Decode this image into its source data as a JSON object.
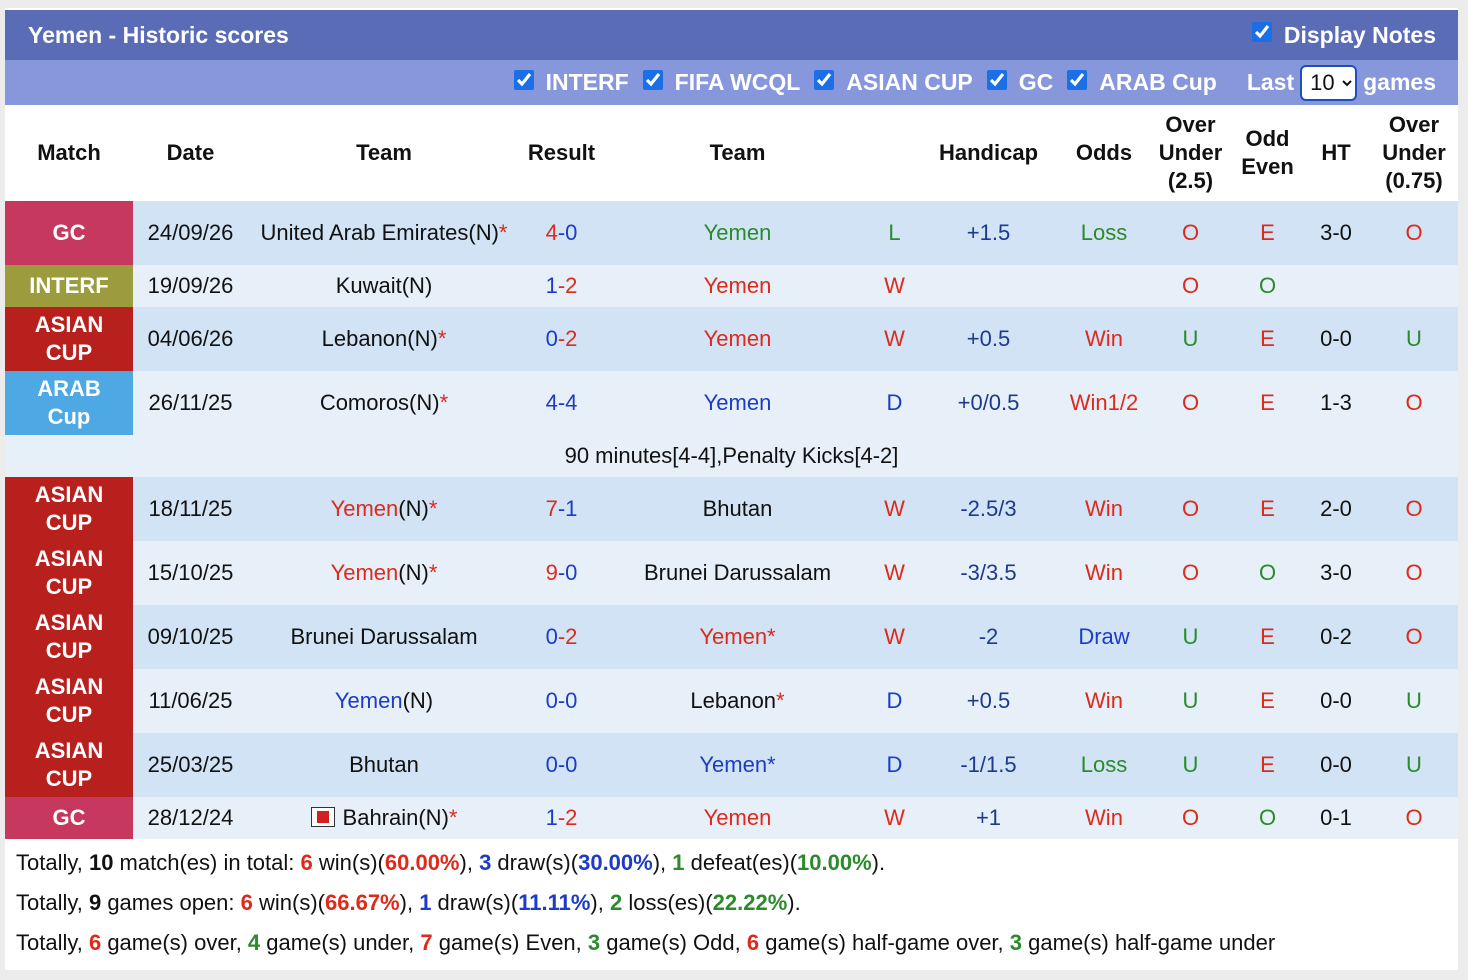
{
  "header": {
    "title": "Yemen - Historic scores",
    "display_notes": "Display Notes"
  },
  "filters": {
    "competitions": [
      "INTERF",
      "FIFA WCQL",
      "ASIAN CUP",
      "GC",
      "ARAB Cup"
    ],
    "last_label": "Last",
    "last_value": "10",
    "games_label": "games"
  },
  "colors": {
    "k": "#111111",
    "r": "#dd2a1b",
    "b": "#1c3bc6",
    "g": "#2b8a2b",
    "n": "#1d3a8f"
  },
  "table": {
    "columns": [
      "Match",
      "Date",
      "Team",
      "Result",
      "Team",
      null,
      "Handicap",
      "Odds",
      "Over Under (2.5)",
      "Odd Even",
      "HT",
      "Over Under (0.75)"
    ],
    "rows": [
      {
        "match": "GC",
        "match_color": "#c6385e",
        "date": "24/09/26",
        "home": [
          [
            "United Arab Emirates(N)",
            "k"
          ],
          [
            "*",
            "r"
          ]
        ],
        "result": [
          [
            "4",
            "r"
          ],
          [
            "-0",
            "b"
          ]
        ],
        "away": [
          [
            "Yemen",
            "g"
          ]
        ],
        "outcome": [
          "L",
          "g"
        ],
        "handicap": [
          "+1.5",
          "n"
        ],
        "odds": [
          "Loss",
          "g"
        ],
        "over_under": [
          "O",
          "r"
        ],
        "odd_even": [
          "E",
          "r"
        ],
        "ht": "3-0",
        "over_under_075": [
          "O",
          "r"
        ]
      },
      {
        "match": "INTERF",
        "match_color": "#9c9b3d",
        "date": "19/09/26",
        "home": [
          [
            "Kuwait(N)",
            "k"
          ]
        ],
        "result": [
          [
            "1",
            "b"
          ],
          [
            "-2",
            "r"
          ]
        ],
        "away": [
          [
            "Yemen",
            "r"
          ]
        ],
        "outcome": [
          "W",
          "r"
        ],
        "handicap": null,
        "odds": null,
        "over_under": [
          "O",
          "r"
        ],
        "odd_even": [
          "O",
          "g"
        ],
        "ht": null,
        "over_under_075": null
      },
      {
        "match": "ASIAN CUP",
        "match_color": "#b8201e",
        "date": "04/06/26",
        "home": [
          [
            "Lebanon(N)",
            "k"
          ],
          [
            "*",
            "r"
          ]
        ],
        "result": [
          [
            "0",
            "b"
          ],
          [
            "-2",
            "r"
          ]
        ],
        "away": [
          [
            "Yemen",
            "r"
          ]
        ],
        "outcome": [
          "W",
          "r"
        ],
        "handicap": [
          "+0.5",
          "n"
        ],
        "odds": [
          "Win",
          "r"
        ],
        "over_under": [
          "U",
          "g"
        ],
        "odd_even": [
          "E",
          "r"
        ],
        "ht": "0-0",
        "over_under_075": [
          "U",
          "g"
        ]
      },
      {
        "match": "ARAB Cup",
        "match_color": "#4ea8e3",
        "date": "26/11/25",
        "home": [
          [
            "Comoros(N)",
            "k"
          ],
          [
            "*",
            "r"
          ]
        ],
        "result": [
          [
            "4-4",
            "b"
          ]
        ],
        "away": [
          [
            "Yemen",
            "b"
          ]
        ],
        "outcome": [
          "D",
          "b"
        ],
        "handicap": [
          "+0/0.5",
          "n"
        ],
        "odds": [
          "Win1/2",
          "r"
        ],
        "over_under": [
          "O",
          "r"
        ],
        "odd_even": [
          "E",
          "r"
        ],
        "ht": "1-3",
        "over_under_075": [
          "O",
          "r"
        ]
      },
      {
        "note": "90 minutes[4-4],Penalty Kicks[4-2]"
      },
      {
        "match": "ASIAN CUP",
        "match_color": "#b8201e",
        "date": "18/11/25",
        "home": [
          [
            "Yemen",
            "r"
          ],
          [
            "(N)",
            "k"
          ],
          [
            "*",
            "r"
          ]
        ],
        "result": [
          [
            "7",
            "r"
          ],
          [
            "-1",
            "b"
          ]
        ],
        "away": [
          [
            "Bhutan",
            "k"
          ]
        ],
        "outcome": [
          "W",
          "r"
        ],
        "handicap": [
          "-2.5/3",
          "n"
        ],
        "odds": [
          "Win",
          "r"
        ],
        "over_under": [
          "O",
          "r"
        ],
        "odd_even": [
          "E",
          "r"
        ],
        "ht": "2-0",
        "over_under_075": [
          "O",
          "r"
        ]
      },
      {
        "match": "ASIAN CUP",
        "match_color": "#b8201e",
        "date": "15/10/25",
        "home": [
          [
            "Yemen",
            "r"
          ],
          [
            "(N)",
            "k"
          ],
          [
            "*",
            "r"
          ]
        ],
        "result": [
          [
            "9",
            "r"
          ],
          [
            "-0",
            "b"
          ]
        ],
        "away": [
          [
            "Brunei Darussalam",
            "k"
          ]
        ],
        "outcome": [
          "W",
          "r"
        ],
        "handicap": [
          "-3/3.5",
          "n"
        ],
        "odds": [
          "Win",
          "r"
        ],
        "over_under": [
          "O",
          "r"
        ],
        "odd_even": [
          "O",
          "g"
        ],
        "ht": "3-0",
        "over_under_075": [
          "O",
          "r"
        ]
      },
      {
        "match": "ASIAN CUP",
        "match_color": "#b8201e",
        "date": "09/10/25",
        "home": [
          [
            "Brunei Darussalam",
            "k"
          ]
        ],
        "result": [
          [
            "0",
            "b"
          ],
          [
            "-2",
            "r"
          ]
        ],
        "away": [
          [
            "Yemen*",
            "r"
          ]
        ],
        "outcome": [
          "W",
          "r"
        ],
        "handicap": [
          "-2",
          "n"
        ],
        "odds": [
          "Draw",
          "b"
        ],
        "over_under": [
          "U",
          "g"
        ],
        "odd_even": [
          "E",
          "r"
        ],
        "ht": "0-2",
        "over_under_075": [
          "O",
          "r"
        ]
      },
      {
        "match": "ASIAN CUP",
        "match_color": "#b8201e",
        "date": "11/06/25",
        "home": [
          [
            "Yemen",
            "b"
          ],
          [
            "(N)",
            "k"
          ]
        ],
        "result": [
          [
            "0-0",
            "b"
          ]
        ],
        "away": [
          [
            "Lebanon",
            "k"
          ],
          [
            "*",
            "r"
          ]
        ],
        "outcome": [
          "D",
          "b"
        ],
        "handicap": [
          "+0.5",
          "n"
        ],
        "odds": [
          "Win",
          "r"
        ],
        "over_under": [
          "U",
          "g"
        ],
        "odd_even": [
          "E",
          "r"
        ],
        "ht": "0-0",
        "over_under_075": [
          "U",
          "g"
        ]
      },
      {
        "match": "ASIAN CUP",
        "match_color": "#b8201e",
        "date": "25/03/25",
        "home": [
          [
            "Bhutan",
            "k"
          ]
        ],
        "result": [
          [
            "0-0",
            "b"
          ]
        ],
        "away": [
          [
            "Yemen*",
            "b"
          ]
        ],
        "outcome": [
          "D",
          "b"
        ],
        "handicap": [
          "-1/1.5",
          "n"
        ],
        "odds": [
          "Loss",
          "g"
        ],
        "over_under": [
          "U",
          "g"
        ],
        "odd_even": [
          "E",
          "r"
        ],
        "ht": "0-0",
        "over_under_075": [
          "U",
          "g"
        ]
      },
      {
        "match": "GC",
        "match_color": "#c6385e",
        "date": "28/12/24",
        "home_flag": "#d21f1f",
        "home": [
          [
            "Bahrain(N)",
            "k"
          ],
          [
            "*",
            "r"
          ]
        ],
        "result": [
          [
            "1",
            "b"
          ],
          [
            "-2",
            "r"
          ]
        ],
        "away": [
          [
            "Yemen",
            "r"
          ]
        ],
        "outcome": [
          "W",
          "r"
        ],
        "handicap": [
          "+1",
          "n"
        ],
        "odds": [
          "Win",
          "r"
        ],
        "over_under": [
          "O",
          "r"
        ],
        "odd_even": [
          "O",
          "g"
        ],
        "ht": "0-1",
        "over_under_075": [
          "O",
          "r"
        ]
      }
    ]
  },
  "summary": [
    [
      [
        "Totally, ",
        "k",
        false
      ],
      [
        "10",
        "k",
        true
      ],
      [
        " match(es) in total: ",
        "k",
        false
      ],
      [
        "6",
        "r",
        true
      ],
      [
        " win(s)(",
        "k",
        false
      ],
      [
        "60.00%",
        "r",
        true
      ],
      [
        "), ",
        "k",
        false
      ],
      [
        "3",
        "b",
        true
      ],
      [
        " draw(s)(",
        "k",
        false
      ],
      [
        "30.00%",
        "b",
        true
      ],
      [
        "), ",
        "k",
        false
      ],
      [
        "1",
        "g",
        true
      ],
      [
        " defeat(es)(",
        "k",
        false
      ],
      [
        "10.00%",
        "g",
        true
      ],
      [
        ").",
        "k",
        false
      ]
    ],
    [
      [
        "Totally, ",
        "k",
        false
      ],
      [
        "9",
        "k",
        true
      ],
      [
        " games open: ",
        "k",
        false
      ],
      [
        "6",
        "r",
        true
      ],
      [
        " win(s)(",
        "k",
        false
      ],
      [
        "66.67%",
        "r",
        true
      ],
      [
        "), ",
        "k",
        false
      ],
      [
        "1",
        "b",
        true
      ],
      [
        " draw(s)(",
        "k",
        false
      ],
      [
        "11.11%",
        "b",
        true
      ],
      [
        "), ",
        "k",
        false
      ],
      [
        "2",
        "g",
        true
      ],
      [
        " loss(es)(",
        "k",
        false
      ],
      [
        "22.22%",
        "g",
        true
      ],
      [
        ").",
        "k",
        false
      ]
    ],
    [
      [
        "Totally, ",
        "k",
        false
      ],
      [
        "6",
        "r",
        true
      ],
      [
        " game(s) over, ",
        "k",
        false
      ],
      [
        "4",
        "g",
        true
      ],
      [
        " game(s) under, ",
        "k",
        false
      ],
      [
        "7",
        "r",
        true
      ],
      [
        " game(s) Even, ",
        "k",
        false
      ],
      [
        "3",
        "g",
        true
      ],
      [
        " game(s) Odd, ",
        "k",
        false
      ],
      [
        "6",
        "r",
        true
      ],
      [
        " game(s) half-game over, ",
        "k",
        false
      ],
      [
        "3",
        "g",
        true
      ],
      [
        " game(s) half-game under",
        "k",
        false
      ]
    ]
  ]
}
